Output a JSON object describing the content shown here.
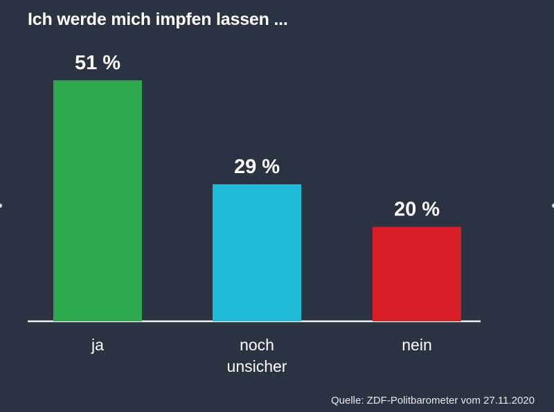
{
  "chart_data": {
    "type": "bar",
    "title": "Ich werde mich impfen lassen ...",
    "categories": [
      "ja",
      "noch\nunsicher",
      "nein"
    ],
    "values": [
      51,
      29,
      20
    ],
    "value_labels": [
      "51 %",
      "29 %",
      "20 %"
    ],
    "unit": "%",
    "colors": [
      "#2ea84e",
      "#1fbcd9",
      "#d81e26"
    ],
    "ylim": [
      0,
      51
    ],
    "grid": false,
    "legend": "none"
  },
  "source": "Quelle: ZDF-Politbarometer vom 27.11.2020",
  "colors": {
    "background": "#2b3342",
    "text": "#ffffff",
    "baseline": "#f2f2f2"
  }
}
